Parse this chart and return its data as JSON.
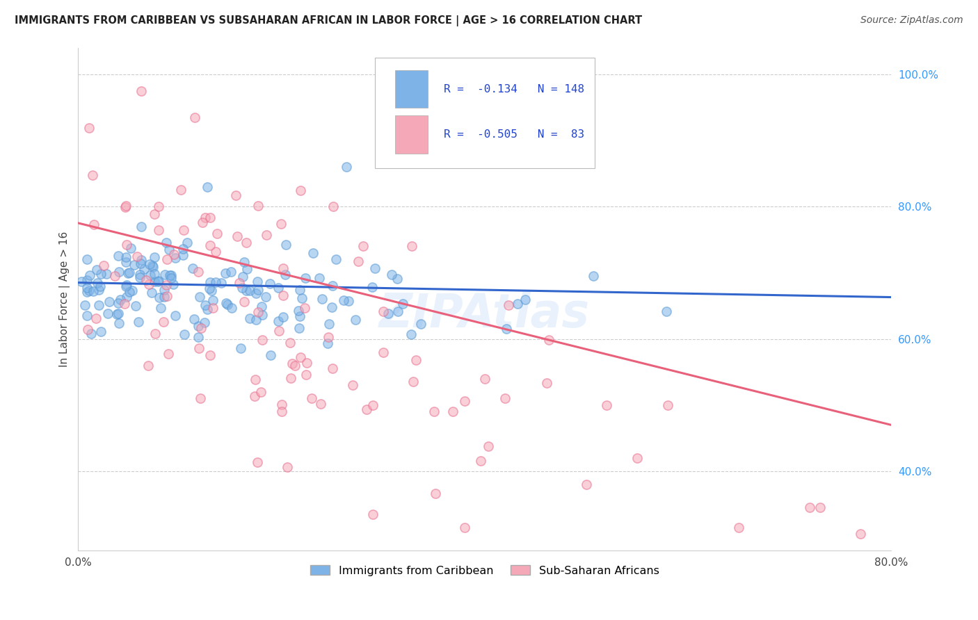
{
  "title": "IMMIGRANTS FROM CARIBBEAN VS SUBSAHARAN AFRICAN IN LABOR FORCE | AGE > 16 CORRELATION CHART",
  "source": "Source: ZipAtlas.com",
  "ylabel": "In Labor Force | Age > 16",
  "xlim": [
    0.0,
    0.8
  ],
  "ylim": [
    0.28,
    1.04
  ],
  "yticks_right": [
    0.4,
    0.6,
    0.8,
    1.0
  ],
  "yticklabels_right": [
    "40.0%",
    "60.0%",
    "80.0%",
    "100.0%"
  ],
  "xtick_positions": [
    0.0,
    0.1,
    0.2,
    0.3,
    0.4,
    0.5,
    0.6,
    0.7,
    0.8
  ],
  "blue_color": "#7EB3E8",
  "blue_edge_color": "#5A9AD4",
  "pink_color": "#F5A8B8",
  "pink_edge_color": "#E87090",
  "blue_line_color": "#3366CC",
  "pink_line_color": "#E8607A",
  "blue_R": -0.134,
  "blue_N": 148,
  "pink_R": -0.505,
  "pink_N": 83,
  "legend_label_blue": "Immigrants from Caribbean",
  "legend_label_pink": "Sub-Saharan Africans",
  "watermark": "ZIPAtlas"
}
